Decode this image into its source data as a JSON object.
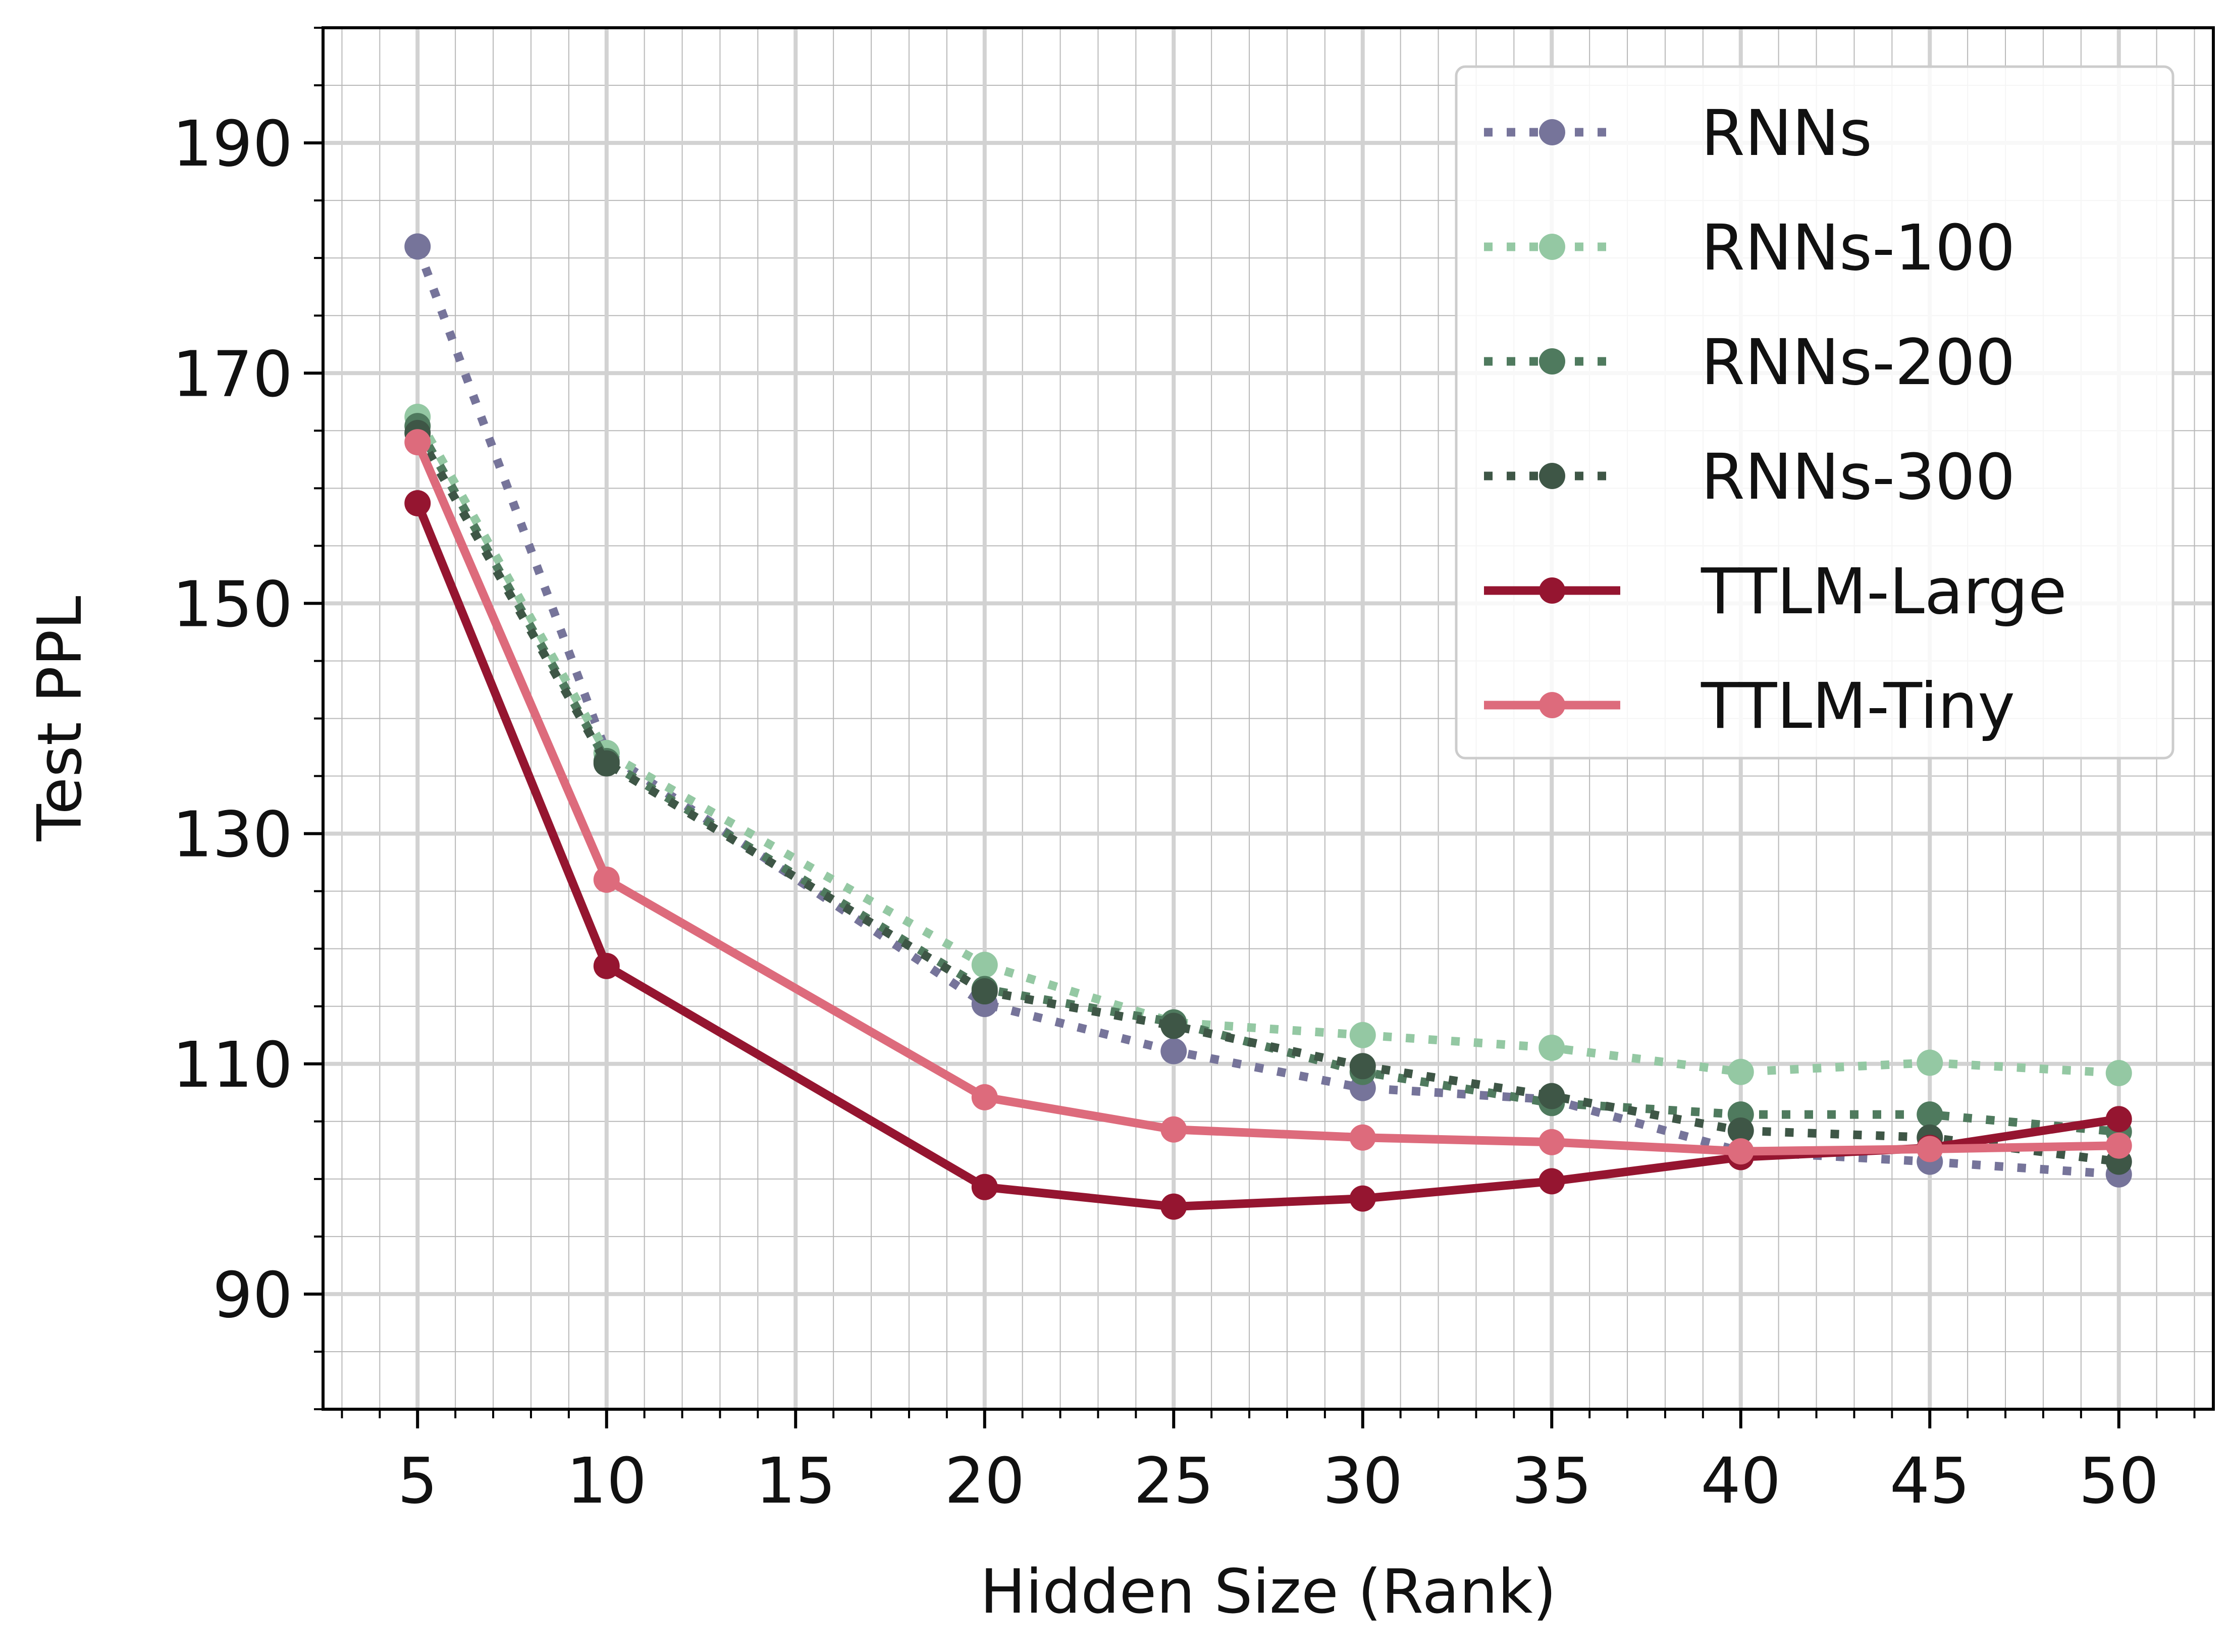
{
  "chart_data": {
    "type": "line",
    "xlabel": "Hidden Size (Rank)",
    "ylabel": "Test PPL",
    "xlim": [
      2.5,
      52.5
    ],
    "ylim": [
      80,
      200
    ],
    "xticks": [
      5,
      10,
      15,
      20,
      25,
      30,
      35,
      40,
      45,
      50
    ],
    "yticks": [
      90,
      110,
      130,
      150,
      170,
      190
    ],
    "grid": true,
    "minor_grid": true,
    "legend_position": "top-right",
    "x": [
      5,
      10,
      20,
      25,
      30,
      35,
      40,
      45,
      50
    ],
    "series": [
      {
        "name": "RNNs",
        "color": "#76749a",
        "dash": "dotted",
        "values": [
          181.0,
          137.0,
          115.2,
          111.1,
          107.9,
          106.9,
          102.4,
          101.5,
          100.4
        ]
      },
      {
        "name": "RNNs-100",
        "color": "#94c8a3",
        "dash": "dotted",
        "values": [
          166.2,
          137.0,
          118.6,
          113.6,
          112.5,
          111.4,
          109.3,
          110.1,
          109.2
        ]
      },
      {
        "name": "RNNs-200",
        "color": "#4f7a5e",
        "dash": "dotted",
        "values": [
          165.4,
          136.3,
          116.5,
          113.6,
          109.3,
          106.6,
          105.6,
          105.6,
          104.1
        ]
      },
      {
        "name": "RNNs-300",
        "color": "#3e5646",
        "dash": "dotted",
        "values": [
          164.8,
          136.1,
          116.3,
          113.3,
          109.8,
          107.2,
          104.2,
          103.6,
          101.5
        ]
      },
      {
        "name": "TTLM-Large",
        "color": "#951530",
        "dash": "solid",
        "values": [
          158.7,
          118.5,
          99.3,
          97.6,
          98.3,
          99.8,
          101.9,
          102.7,
          105.2
        ]
      },
      {
        "name": "TTLM-Tiny",
        "color": "#dd6b7c",
        "dash": "solid",
        "values": [
          164.0,
          126.0,
          107.1,
          104.3,
          103.6,
          103.2,
          102.4,
          102.6,
          102.9
        ]
      }
    ]
  }
}
